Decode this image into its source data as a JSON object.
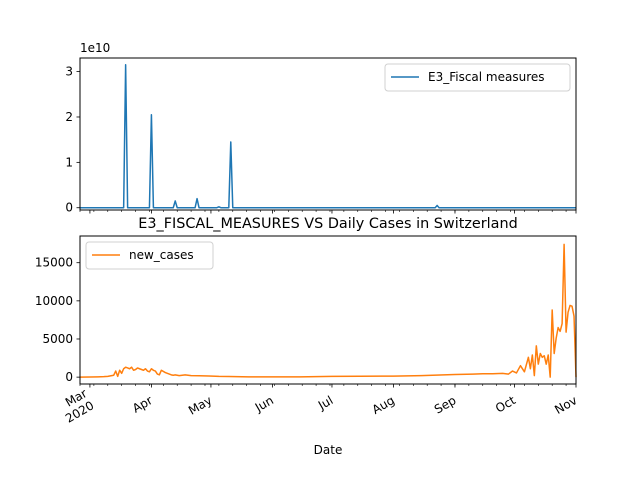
{
  "chart_data": [
    {
      "type": "line",
      "title": "",
      "offset_label": "1e10",
      "xlabel": "",
      "ylabel": "",
      "ylim": [
        -0.05,
        3.3
      ],
      "yticks": [
        0,
        1,
        2,
        3
      ],
      "ytick_labels": [
        "0",
        "1",
        "2",
        "3"
      ],
      "legend_position": "upper right",
      "grid": false,
      "series": [
        {
          "name": "E3_Fiscal measures",
          "color": "#1f77b4",
          "x": [
            "2020-02-25",
            "2020-03-18",
            "2020-03-19",
            "2020-03-20",
            "2020-03-31",
            "2020-04-01",
            "2020-04-02",
            "2020-04-12",
            "2020-04-13",
            "2020-04-14",
            "2020-04-23",
            "2020-04-24",
            "2020-04-25",
            "2020-05-04",
            "2020-05-05",
            "2020-05-06",
            "2020-05-10",
            "2020-05-11",
            "2020-05-12",
            "2020-08-22",
            "2020-08-23",
            "2020-08-24",
            "2020-11-01"
          ],
          "values": [
            0,
            0,
            3.15,
            0,
            0,
            2.05,
            0,
            0,
            0.15,
            0,
            0,
            0.2,
            0,
            0,
            0.02,
            0,
            0,
            1.45,
            0,
            0,
            0.05,
            0,
            0
          ]
        }
      ]
    },
    {
      "type": "line",
      "title": "E3_FISCAL_MEASURES VS Daily Cases in Switzerland",
      "xlabel": "Date",
      "ylabel": "",
      "ylim": [
        -900,
        18500
      ],
      "yticks": [
        0,
        5000,
        10000,
        15000
      ],
      "ytick_labels": [
        "0",
        "5000",
        "10000",
        "15000"
      ],
      "xlim": [
        "2020-02-25",
        "2020-11-01"
      ],
      "xtick_dates": [
        "2020-03-01",
        "2020-04-01",
        "2020-05-01",
        "2020-06-01",
        "2020-07-01",
        "2020-08-01",
        "2020-09-01",
        "2020-10-01",
        "2020-11-01"
      ],
      "xtick_labels": [
        "Mar\n2020",
        "Apr",
        "May",
        "Jun",
        "Jul",
        "Aug",
        "Sep",
        "Oct",
        "Nov"
      ],
      "legend_position": "upper left",
      "grid": false,
      "series": [
        {
          "name": "new_cases",
          "color": "#ff7f0e",
          "x": [
            "2020-02-25",
            "2020-03-01",
            "2020-03-05",
            "2020-03-08",
            "2020-03-10",
            "2020-03-12",
            "2020-03-13",
            "2020-03-14",
            "2020-03-15",
            "2020-03-16",
            "2020-03-17",
            "2020-03-18",
            "2020-03-19",
            "2020-03-20",
            "2020-03-21",
            "2020-03-22",
            "2020-03-23",
            "2020-03-24",
            "2020-03-25",
            "2020-03-26",
            "2020-03-27",
            "2020-03-28",
            "2020-03-29",
            "2020-03-30",
            "2020-03-31",
            "2020-04-01",
            "2020-04-02",
            "2020-04-03",
            "2020-04-04",
            "2020-04-05",
            "2020-04-06",
            "2020-04-08",
            "2020-04-10",
            "2020-04-11",
            "2020-04-12",
            "2020-04-13",
            "2020-04-15",
            "2020-04-18",
            "2020-04-21",
            "2020-04-25",
            "2020-04-30",
            "2020-05-05",
            "2020-05-10",
            "2020-05-20",
            "2020-06-01",
            "2020-06-15",
            "2020-07-01",
            "2020-07-15",
            "2020-08-01",
            "2020-08-15",
            "2020-09-01",
            "2020-09-10",
            "2020-09-15",
            "2020-09-20",
            "2020-09-25",
            "2020-09-28",
            "2020-09-30",
            "2020-10-02",
            "2020-10-04",
            "2020-10-06",
            "2020-10-08",
            "2020-10-09",
            "2020-10-10",
            "2020-10-11",
            "2020-10-12",
            "2020-10-13",
            "2020-10-14",
            "2020-10-15",
            "2020-10-16",
            "2020-10-17",
            "2020-10-18",
            "2020-10-19",
            "2020-10-20",
            "2020-10-21",
            "2020-10-22",
            "2020-10-23",
            "2020-10-24",
            "2020-10-25",
            "2020-10-26",
            "2020-10-27",
            "2020-10-28",
            "2020-10-29",
            "2020-10-30",
            "2020-10-31",
            "2020-11-01"
          ],
          "values": [
            0,
            10,
            30,
            60,
            100,
            200,
            250,
            800,
            100,
            900,
            500,
            1100,
            1300,
            1200,
            1100,
            1300,
            900,
            1000,
            1200,
            1100,
            1000,
            900,
            1100,
            800,
            700,
            1100,
            900,
            800,
            400,
            300,
            900,
            600,
            400,
            300,
            250,
            300,
            200,
            300,
            200,
            180,
            150,
            100,
            80,
            40,
            30,
            30,
            100,
            120,
            130,
            200,
            350,
            400,
            450,
            450,
            500,
            400,
            800,
            550,
            1500,
            700,
            2600,
            1100,
            2900,
            200,
            4100,
            1700,
            3100,
            2600,
            2800,
            1700,
            2900,
            0,
            8800,
            3100,
            5100,
            6500,
            6000,
            7000,
            17400,
            5900,
            8500,
            9400,
            9300,
            8000,
            0
          ]
        }
      ]
    }
  ]
}
